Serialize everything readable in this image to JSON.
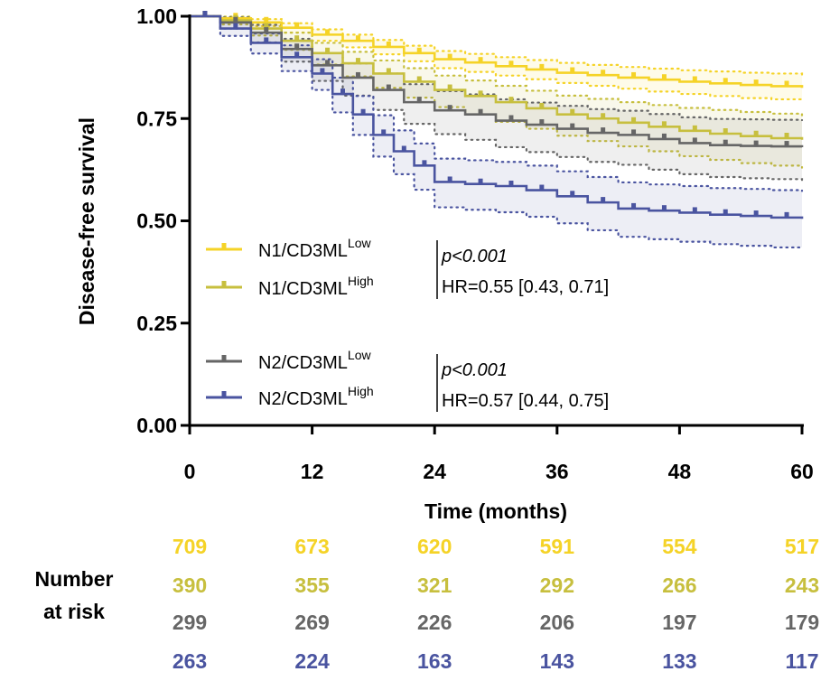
{
  "chart_data": {
    "type": "line",
    "subtype": "kaplan-meier",
    "title": "",
    "xlabel": "Time (months)",
    "ylabel": "Disease-free survival",
    "xlim": [
      0,
      60
    ],
    "ylim": [
      0,
      1
    ],
    "x_ticks": [
      0,
      12,
      24,
      36,
      48,
      60
    ],
    "x_tick_labels": [
      "0",
      "12",
      "24",
      "36",
      "48",
      "60"
    ],
    "y_ticks": [
      0,
      0.25,
      0.5,
      0.75,
      1.0
    ],
    "y_tick_labels": [
      "0.00",
      "0.25",
      "0.50",
      "0.75",
      "1.00"
    ],
    "grid": false,
    "legend_position": "lower-left (inside plot)",
    "series": [
      {
        "name": "N1/CD3ML",
        "name_superscript": "Low",
        "color": "#F5D327",
        "x": [
          0,
          3,
          6,
          9,
          12,
          15,
          18,
          21,
          24,
          27,
          30,
          33,
          36,
          39,
          42,
          45,
          48,
          51,
          54,
          57,
          60
        ],
        "values": [
          1.0,
          0.995,
          0.985,
          0.972,
          0.955,
          0.94,
          0.925,
          0.91,
          0.895,
          0.887,
          0.878,
          0.87,
          0.862,
          0.856,
          0.85,
          0.845,
          0.84,
          0.836,
          0.832,
          0.829,
          0.825
        ],
        "ci_lower": [
          1.0,
          0.99,
          0.976,
          0.96,
          0.94,
          0.924,
          0.907,
          0.89,
          0.873,
          0.864,
          0.855,
          0.846,
          0.837,
          0.83,
          0.823,
          0.816,
          0.81,
          0.805,
          0.8,
          0.797,
          0.793
        ],
        "ci_upper": [
          1.0,
          0.999,
          0.993,
          0.983,
          0.968,
          0.955,
          0.942,
          0.928,
          0.915,
          0.908,
          0.9,
          0.893,
          0.886,
          0.881,
          0.876,
          0.872,
          0.868,
          0.865,
          0.862,
          0.86,
          0.857
        ]
      },
      {
        "name": "N1/CD3ML",
        "name_superscript": "High",
        "color": "#C7BF3E",
        "x": [
          0,
          3,
          6,
          9,
          12,
          15,
          18,
          21,
          24,
          27,
          30,
          33,
          36,
          39,
          42,
          45,
          48,
          51,
          54,
          57,
          60
        ],
        "values": [
          1.0,
          0.99,
          0.97,
          0.94,
          0.91,
          0.885,
          0.86,
          0.84,
          0.82,
          0.805,
          0.79,
          0.775,
          0.76,
          0.75,
          0.74,
          0.73,
          0.72,
          0.713,
          0.707,
          0.702,
          0.698
        ],
        "ci_lower": [
          1.0,
          0.98,
          0.953,
          0.918,
          0.882,
          0.853,
          0.825,
          0.801,
          0.778,
          0.76,
          0.742,
          0.725,
          0.708,
          0.695,
          0.682,
          0.67,
          0.658,
          0.649,
          0.641,
          0.635,
          0.63
        ],
        "ci_upper": [
          1.0,
          0.999,
          0.985,
          0.96,
          0.935,
          0.913,
          0.892,
          0.873,
          0.855,
          0.843,
          0.83,
          0.818,
          0.806,
          0.798,
          0.79,
          0.783,
          0.776,
          0.771,
          0.766,
          0.762,
          0.758
        ]
      },
      {
        "name": "N2/CD3ML",
        "name_superscript": "Low",
        "color": "#666666",
        "x": [
          0,
          3,
          6,
          9,
          12,
          15,
          18,
          21,
          24,
          27,
          30,
          33,
          36,
          39,
          42,
          45,
          48,
          51,
          54,
          57,
          60
        ],
        "values": [
          1.0,
          0.985,
          0.96,
          0.92,
          0.88,
          0.85,
          0.82,
          0.79,
          0.77,
          0.76,
          0.745,
          0.735,
          0.725,
          0.715,
          0.71,
          0.7,
          0.69,
          0.685,
          0.683,
          0.682,
          0.68
        ],
        "ci_lower": [
          1.0,
          0.97,
          0.936,
          0.889,
          0.842,
          0.806,
          0.771,
          0.737,
          0.712,
          0.698,
          0.68,
          0.668,
          0.656,
          0.644,
          0.637,
          0.625,
          0.614,
          0.607,
          0.604,
          0.602,
          0.6
        ],
        "ci_upper": [
          1.0,
          0.997,
          0.979,
          0.945,
          0.91,
          0.885,
          0.86,
          0.834,
          0.817,
          0.809,
          0.797,
          0.789,
          0.781,
          0.773,
          0.769,
          0.761,
          0.753,
          0.749,
          0.748,
          0.747,
          0.746
        ]
      },
      {
        "name": "N2/CD3ML",
        "name_superscript": "High",
        "color": "#4A54A0",
        "x": [
          0,
          3,
          6,
          9,
          12,
          14,
          16,
          18,
          20,
          22,
          24,
          27,
          30,
          33,
          36,
          39,
          42,
          45,
          48,
          51,
          54,
          57,
          60
        ],
        "values": [
          1.0,
          0.97,
          0.935,
          0.9,
          0.86,
          0.81,
          0.76,
          0.71,
          0.67,
          0.635,
          0.595,
          0.59,
          0.585,
          0.575,
          0.56,
          0.545,
          0.53,
          0.525,
          0.52,
          0.515,
          0.512,
          0.508,
          0.505
        ],
        "ci_lower": [
          1.0,
          0.952,
          0.909,
          0.866,
          0.82,
          0.765,
          0.71,
          0.657,
          0.614,
          0.576,
          0.533,
          0.527,
          0.521,
          0.51,
          0.494,
          0.477,
          0.461,
          0.455,
          0.449,
          0.443,
          0.439,
          0.435,
          0.431
        ],
        "ci_upper": [
          1.0,
          0.985,
          0.958,
          0.929,
          0.895,
          0.85,
          0.805,
          0.758,
          0.721,
          0.689,
          0.652,
          0.648,
          0.644,
          0.635,
          0.621,
          0.607,
          0.594,
          0.589,
          0.585,
          0.58,
          0.578,
          0.575,
          0.573
        ]
      }
    ],
    "annotations": [
      {
        "p_text": "p<0.001",
        "hr_text": "HR=0.55 [0.43, 0.71]"
      },
      {
        "p_text": "p<0.001",
        "hr_text": "HR=0.57 [0.44, 0.75]"
      }
    ],
    "risk_table": {
      "label_line1": "Number",
      "label_line2": "at risk",
      "rows": [
        {
          "color": "#F5D327",
          "values": [
            "709",
            "673",
            "620",
            "591",
            "554",
            "517"
          ]
        },
        {
          "color": "#C7BF3E",
          "values": [
            "390",
            "355",
            "321",
            "292",
            "266",
            "243"
          ]
        },
        {
          "color": "#666666",
          "values": [
            "299",
            "269",
            "226",
            "206",
            "197",
            "179"
          ]
        },
        {
          "color": "#4A54A0",
          "values": [
            "263",
            "224",
            "163",
            "143",
            "133",
            "117"
          ]
        }
      ]
    }
  }
}
